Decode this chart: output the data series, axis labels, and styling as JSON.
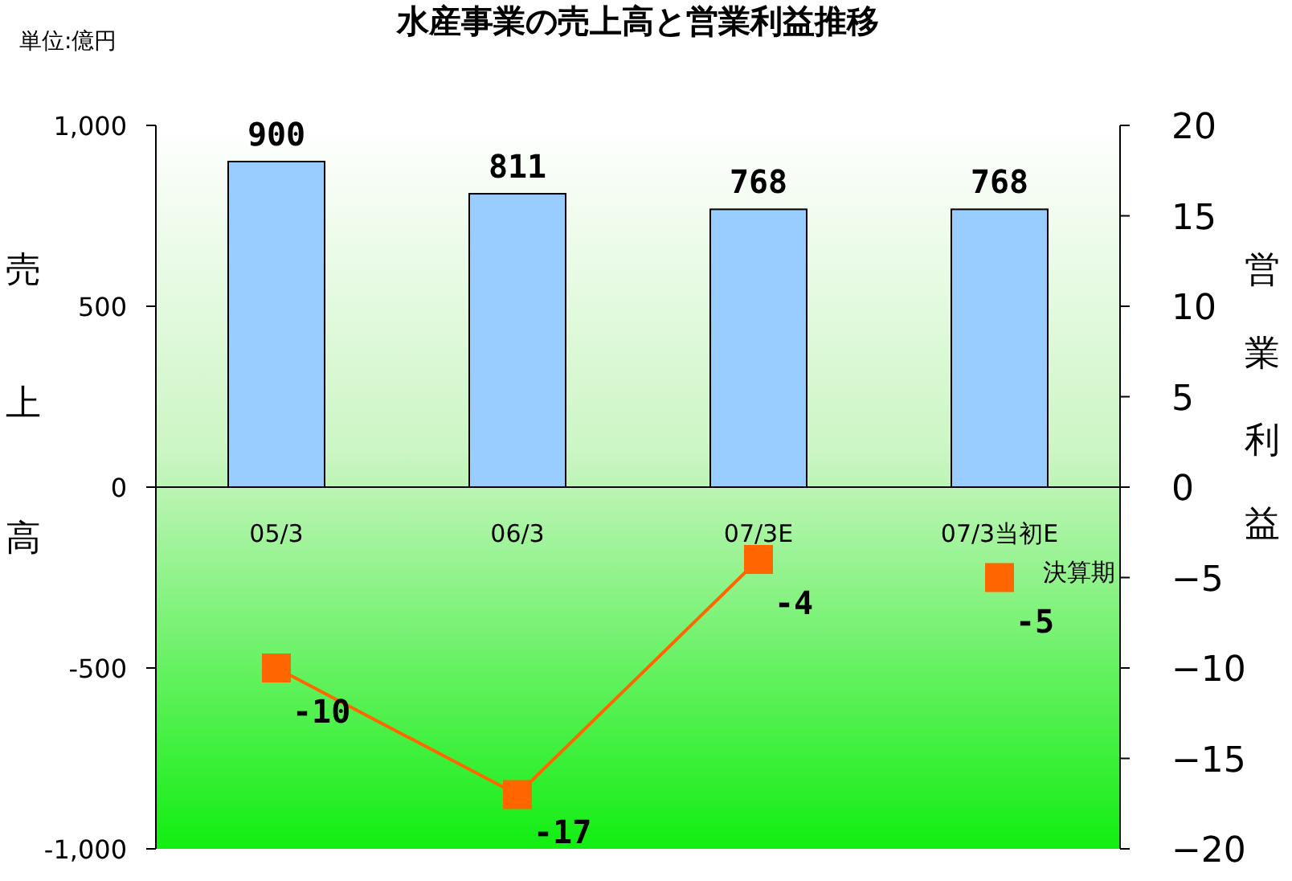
{
  "chart_data": {
    "type": "bar",
    "title": "水産事業の売上高と営業利益推移",
    "annotations": [
      "単位:億円"
    ],
    "xlabel": "決算期",
    "ylabel": "売上高",
    "y2label": "営業利益",
    "categories": [
      "05/3",
      "06/3",
      "07/3E",
      "07/3当初E"
    ],
    "series": [
      {
        "type": "bar",
        "color": "#99ccff",
        "values": [
          900,
          811,
          768,
          768
        ]
      },
      {
        "type": "line",
        "axis": "y2",
        "color": "#ff6600",
        "values": [
          -10,
          -17,
          -4,
          null
        ]
      },
      {
        "type": "scatter",
        "axis": "y2",
        "color": "#ff6600",
        "values": [
          null,
          null,
          null,
          -5
        ]
      }
    ],
    "data_labels": true,
    "marker": "square",
    "ylim": [
      -1000,
      1000
    ],
    "yticks": [
      {
        "value": -1000,
        "label": "-1,000"
      },
      -500,
      0,
      500,
      {
        "value": 1000,
        "label": "1,000"
      }
    ],
    "y2lim": [
      -20,
      20
    ],
    "y2ticks": [
      -20,
      -15,
      -10,
      -5,
      0,
      5,
      10,
      15,
      20
    ]
  }
}
